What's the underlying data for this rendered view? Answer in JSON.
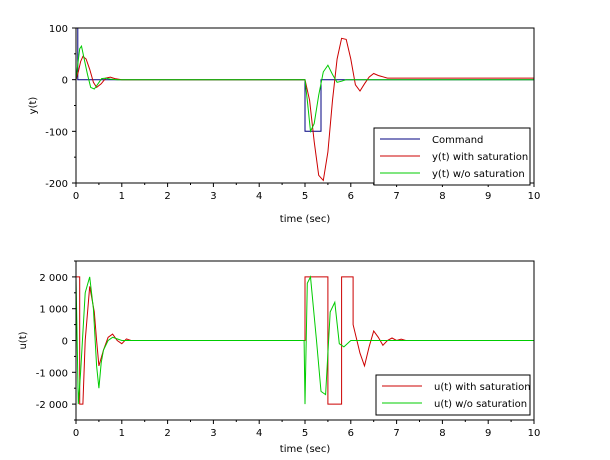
{
  "chart_data": [
    {
      "type": "line",
      "xlabel": "time (sec)",
      "ylabel": "y(t)",
      "xlim": [
        0,
        10
      ],
      "ylim": [
        -200,
        100
      ],
      "xticks": [
        0,
        1,
        2,
        3,
        4,
        5,
        6,
        7,
        8,
        9,
        10
      ],
      "yticks": [
        100,
        0,
        -100,
        -200
      ],
      "ytick_labels": [
        "100",
        "0",
        "-100",
        "-200"
      ],
      "grid": false,
      "legend_position": "bottom-right",
      "series": [
        {
          "name": "Command",
          "color": "#000080",
          "x": [
            0,
            0.0,
            0.04,
            0.04,
            4.999,
            5.0,
            5.0,
            5.35,
            5.35,
            10
          ],
          "y": [
            0,
            100,
            100,
            0,
            0,
            0,
            -100,
            -100,
            0,
            0
          ]
        },
        {
          "name": "y(t) with saturation",
          "color": "#cc0000",
          "x": [
            0,
            0.05,
            0.1,
            0.15,
            0.22,
            0.3,
            0.38,
            0.45,
            0.55,
            0.65,
            0.75,
            0.85,
            1.0,
            1.2,
            4.9,
            5.0,
            5.1,
            5.2,
            5.3,
            5.4,
            5.5,
            5.6,
            5.7,
            5.8,
            5.9,
            6.0,
            6.1,
            6.2,
            6.3,
            6.4,
            6.5,
            6.6,
            6.8,
            7.0,
            7.5,
            10
          ],
          "y": [
            0,
            15,
            35,
            45,
            40,
            20,
            -5,
            -15,
            -8,
            3,
            5,
            2,
            0,
            0,
            0,
            0,
            -40,
            -120,
            -185,
            -195,
            -140,
            -40,
            40,
            80,
            78,
            40,
            -10,
            -22,
            -8,
            5,
            12,
            8,
            3,
            3,
            3,
            3
          ]
        },
        {
          "name": "y(t) w/o saturation",
          "color": "#00cc00",
          "x": [
            0,
            0.04,
            0.08,
            0.12,
            0.18,
            0.25,
            0.32,
            0.4,
            0.48,
            0.56,
            0.65,
            0.75,
            0.9,
            1.0,
            5.0,
            5.05,
            5.12,
            5.2,
            5.3,
            5.4,
            5.5,
            5.6,
            5.7,
            5.8,
            5.9,
            6.0,
            6.2,
            10
          ],
          "y": [
            0,
            30,
            60,
            65,
            40,
            10,
            -15,
            -18,
            -8,
            2,
            3,
            1,
            0,
            0,
            0,
            -40,
            -100,
            -85,
            -30,
            15,
            28,
            10,
            -5,
            -3,
            0,
            0,
            0,
            0
          ]
        }
      ]
    },
    {
      "type": "line",
      "xlabel": "time (sec)",
      "ylabel": "u(t)",
      "xlim": [
        0,
        10
      ],
      "ylim": [
        -2500,
        2500
      ],
      "xticks": [
        0,
        1,
        2,
        3,
        4,
        5,
        6,
        7,
        8,
        9,
        10
      ],
      "yticks": [
        2000,
        1000,
        0,
        -1000,
        -2000
      ],
      "ytick_labels": [
        "2 000",
        "1 000",
        "0",
        "-1 000",
        "-2 000"
      ],
      "grid": false,
      "legend_position": "bottom-right",
      "series": [
        {
          "name": "u(t) with saturation",
          "color": "#cc0000",
          "x": [
            0,
            0.0,
            0.08,
            0.08,
            0.15,
            0.2,
            0.3,
            0.4,
            0.45,
            0.5,
            0.6,
            0.7,
            0.8,
            0.9,
            1.0,
            1.1,
            1.2,
            1.4,
            4.99,
            5.0,
            5.0,
            5.5,
            5.5,
            5.8,
            5.8,
            6.05,
            6.05,
            6.2,
            6.3,
            6.4,
            6.5,
            6.6,
            6.7,
            6.8,
            6.9,
            7.0,
            7.1,
            7.2,
            10
          ],
          "y": [
            0,
            2000,
            2000,
            -2000,
            -2000,
            0,
            1700,
            900,
            0,
            -800,
            -300,
            100,
            200,
            0,
            -100,
            50,
            0,
            0,
            0,
            0,
            2000,
            2000,
            -2000,
            -2000,
            2000,
            2000,
            500,
            -400,
            -800,
            -200,
            300,
            100,
            -150,
            0,
            80,
            0,
            40,
            0,
            0
          ]
        },
        {
          "name": "u(t) w/o saturation",
          "color": "#00cc00",
          "x": [
            0,
            0.0,
            0.05,
            0.1,
            0.2,
            0.3,
            0.38,
            0.45,
            0.5,
            0.55,
            0.6,
            0.7,
            0.8,
            0.9,
            1.0,
            1.2,
            4.98,
            5.0,
            5.05,
            5.12,
            5.25,
            5.35,
            5.45,
            5.55,
            5.65,
            5.75,
            5.85,
            6.0,
            6.2,
            6.4,
            10
          ],
          "y": [
            0,
            2000,
            -2000,
            -1000,
            1500,
            2000,
            1000,
            -800,
            -1500,
            -700,
            -300,
            0,
            100,
            50,
            0,
            0,
            0,
            -2000,
            1800,
            2000,
            0,
            -1600,
            -1700,
            900,
            1200,
            -100,
            -200,
            0,
            0,
            0,
            0
          ]
        }
      ]
    }
  ]
}
